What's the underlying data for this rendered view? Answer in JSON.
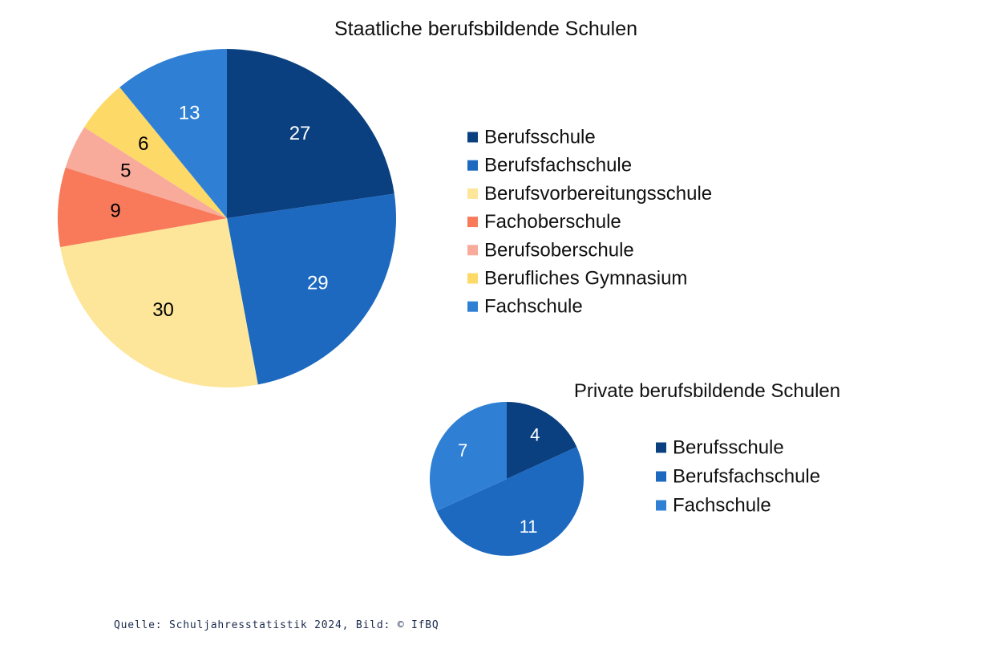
{
  "chart_data": [
    {
      "type": "pie",
      "title": "Staatliche berufsbildende Schulen",
      "categories": [
        "Berufsschule",
        "Berufsfachschule",
        "Berufsvorbereitungsschule",
        "Fachoberschule",
        "Berufsoberschule",
        "Berufliches Gymnasium",
        "Fachschule"
      ],
      "values": [
        27,
        29,
        30,
        9,
        5,
        6,
        13
      ],
      "colors": [
        "#0b4080",
        "#1c69bf",
        "#fde699",
        "#f87a5a",
        "#f8ab9b",
        "#fdd968",
        "#2f80d4"
      ],
      "label_colors": [
        "#ffffff",
        "#ffffff",
        "#000000",
        "#000000",
        "#000000",
        "#000000",
        "#ffffff"
      ],
      "legend": "right"
    },
    {
      "type": "pie",
      "title": "Private berufsbildende Schulen",
      "categories": [
        "Berufsschule",
        "Berufsfachschule",
        "Fachschule"
      ],
      "values": [
        4,
        11,
        7
      ],
      "colors": [
        "#0b4080",
        "#1c69bf",
        "#2f80d4"
      ],
      "label_colors": [
        "#ffffff",
        "#ffffff",
        "#ffffff"
      ],
      "legend": "right"
    }
  ],
  "caption": "Quelle: Schuljahresstatistik 2024, Bild: © IfBQ"
}
